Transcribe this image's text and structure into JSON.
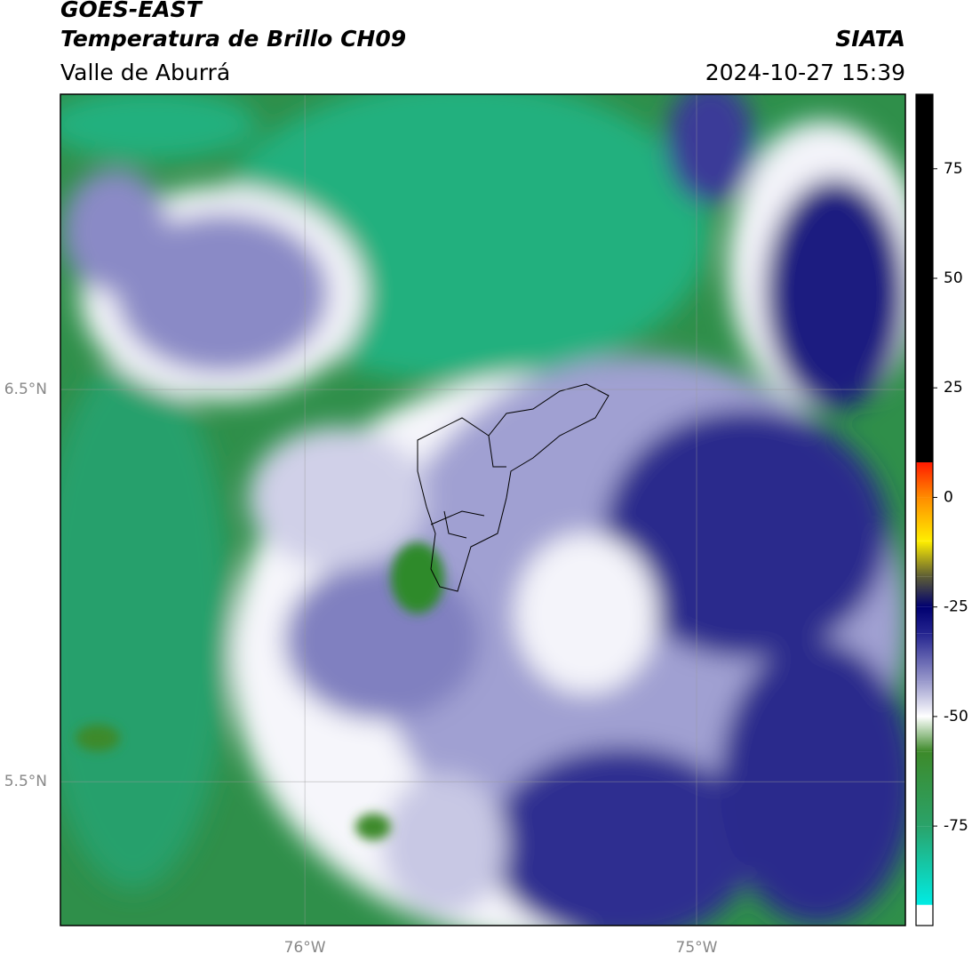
{
  "header": {
    "title": "GOES-EAST",
    "subtitle": "Temperatura de Brillo CH09",
    "region": "Valle de Aburrá",
    "source": "SIATA",
    "datetime": "2024-10-27 15:39"
  },
  "map": {
    "xlim": [
      -76.624,
      -74.467
    ],
    "ylim": [
      5.133,
      7.253
    ],
    "xticks": [
      {
        "value": -76,
        "label": "76°W"
      },
      {
        "value": -75,
        "label": "75°W"
      }
    ],
    "yticks": [
      {
        "value": 6.5,
        "label": "6.5°N"
      },
      {
        "value": 5.5,
        "label": "5.5°N"
      }
    ],
    "grid": true
  },
  "colorbar": {
    "lim": [
      -97.7,
      92
    ],
    "ticks": [
      75,
      50,
      25,
      0,
      -25,
      -50,
      -75
    ],
    "stops": [
      {
        "value": 8,
        "color": "#000000"
      },
      {
        "value": 8,
        "color": "#ff1a00"
      },
      {
        "value": 0,
        "color": "#ff8c00"
      },
      {
        "value": -10,
        "color": "#ffee00"
      },
      {
        "value": -18,
        "color": "#5e5e34"
      },
      {
        "value": -25,
        "color": "#000070"
      },
      {
        "value": -31,
        "color": "#24248f"
      },
      {
        "value": -42,
        "color": "#9a9acc"
      },
      {
        "value": -50,
        "color": "#ffffff"
      },
      {
        "value": -58,
        "color": "#3d8a2a"
      },
      {
        "value": -75,
        "color": "#2aa36a"
      },
      {
        "value": -93,
        "color": "#00ece4"
      },
      {
        "value": -93,
        "color": "#ffffff"
      }
    ]
  }
}
